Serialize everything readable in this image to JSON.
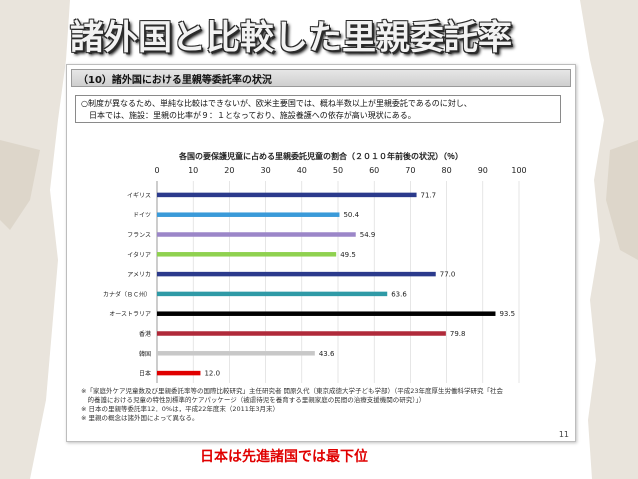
{
  "slide_title": "諸外国と比較した里親委託率",
  "section_heading": "（10）諸外国における里親等委託率の状況",
  "note_lines": [
    "○制度が異なるため、単純な比較はできないが、欧米主要国では、概ね半数以上が里親委託であるのに対し、",
    "　日本では、施設：里親の比率が９：１となっており、施設養護への依存が高い現状にある。"
  ],
  "footnotes": [
    "※「家庭外ケア児童数及び里親委託率等の国際比較研究」主任研究者 開原久代（東京成徳大学子ども学部）（平成23年度厚生労働科学研究「社会",
    "　的養護における児童の特性別標準的ケアパッケージ（被虐待児を養育する里親家庭の民間の治療支援機関の研究）」）",
    "※ 日本の里親等委託率12．0%は，平成22年度末（2011年3月末）",
    "※ 里親の概念は諸外国によって異なる。"
  ],
  "page_number": "11",
  "bottom_caption": "日本は先進諸国では最下位",
  "colors": {
    "title_text": "#f2f2f2",
    "caption_text": "#e00000"
  },
  "chart_data": {
    "type": "bar",
    "orientation": "horizontal",
    "title": "各国の要保護児童に占める里親委託児童の割合（２０１０年前後の状況）（％）",
    "xlim": [
      0,
      100
    ],
    "xticks": [
      0,
      10,
      20,
      30,
      40,
      50,
      60,
      70,
      80,
      90,
      100
    ],
    "grid": true,
    "categories": [
      "イギリス",
      "ドイツ",
      "フランス",
      "イタリア",
      "アメリカ",
      "カナダ（ＢＣ州）",
      "オーストラリア",
      "香港",
      "韓国",
      "日本"
    ],
    "values": [
      71.7,
      50.4,
      54.9,
      49.5,
      77.0,
      63.6,
      93.5,
      79.8,
      43.6,
      12.0
    ],
    "value_labels": [
      "71.7",
      "50.4",
      "54.9",
      "49.5",
      "77.0",
      "63.6",
      "93.5",
      "79.8",
      "43.6",
      "12.0"
    ],
    "bar_colors": [
      "#2b3a8c",
      "#3a9ad9",
      "#9b86c8",
      "#8fd14f",
      "#2b3a8c",
      "#2f9aa6",
      "#000000",
      "#b02a3a",
      "#c8c8c8",
      "#e00000"
    ]
  }
}
